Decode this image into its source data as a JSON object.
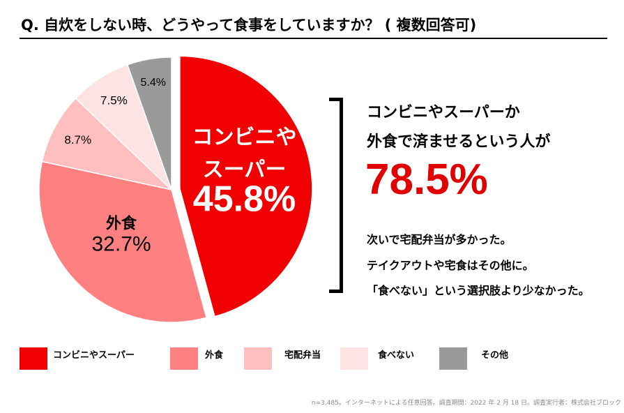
{
  "title": "Q. 自炊をしない時、どうやって食事をしていますか？ ( 複数回答可)",
  "chart_data": {
    "type": "pie",
    "title": "Q. 自炊をしない時、どうやって食事をしていますか？ ( 複数回答可)",
    "categories": [
      "コンビニやスーパー",
      "外食",
      "宅配弁当",
      "食べない",
      "その他"
    ],
    "values": [
      45.8,
      32.7,
      8.7,
      7.5,
      5.4
    ],
    "unit": "%",
    "colors": [
      "#f00000",
      "#ff8080",
      "#ffbfbf",
      "#fde3e3",
      "#9a9a9a"
    ],
    "slice_labels": [
      {
        "lines": [
          "コンビニや",
          "スーパー"
        ],
        "value": "45.8%"
      },
      {
        "lines": [
          "外食"
        ],
        "value": "32.7%"
      },
      {
        "lines": [],
        "value": "8.7%"
      },
      {
        "lines": [],
        "value": "7.5%"
      },
      {
        "lines": [],
        "value": "5.4%"
      }
    ],
    "exploded_slice": "コンビニやスーパー",
    "legend_position": "bottom"
  },
  "summary": {
    "line1": "コンビニやスーパーか",
    "line2": "外食で済ませるという人が",
    "percent": "78.5%",
    "detail": [
      "次いで宅配弁当が多かった。",
      "テイクアウトや宅食はその他に。",
      "「食べない」という選択肢より少なかった。"
    ]
  },
  "footnote": "n=3,485。インターネットによる任意回答。調査期間：2022 年 2 月 18 日。調査実行者：株式会社ブロック"
}
